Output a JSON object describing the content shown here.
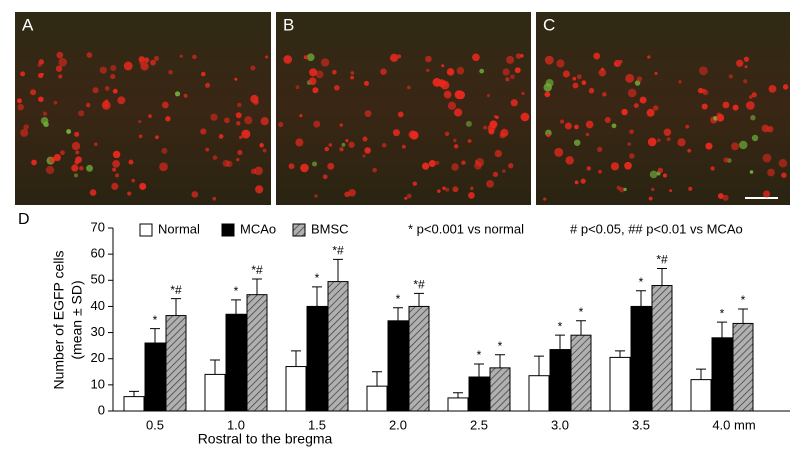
{
  "panels": [
    "A",
    "B",
    "C"
  ],
  "chart_data": {
    "type": "bar",
    "panel": "D",
    "y_label": [
      "Number of EGFP cells",
      "(mean ± SD)"
    ],
    "x_label": "Rostral to the bregma",
    "categories": [
      "0.5",
      "1.0",
      "1.5",
      "2.0",
      "2.5",
      "3.0",
      "3.5",
      "4.0 mm"
    ],
    "series": [
      {
        "name": "Normal",
        "color": "#ffffff",
        "hatch": false,
        "values": [
          5.5,
          14,
          17,
          9.5,
          5,
          13.5,
          20.5,
          12
        ],
        "errors": [
          2,
          5.5,
          6,
          5.5,
          2,
          7.5,
          2.5,
          4
        ]
      },
      {
        "name": "MCAo",
        "color": "#000000",
        "hatch": false,
        "values": [
          26,
          37,
          40,
          34.5,
          13,
          23.5,
          40,
          28
        ],
        "errors": [
          5.5,
          5.5,
          7.5,
          5,
          5,
          5.5,
          6,
          6
        ],
        "markers": [
          "*",
          "*",
          "*",
          "*",
          "*",
          "*",
          "*",
          "*"
        ]
      },
      {
        "name": "BMSC",
        "color": "#9a9a9a",
        "hatch": true,
        "values": [
          36.5,
          44.5,
          49.5,
          40,
          16.5,
          29,
          48,
          33.5
        ],
        "errors": [
          6.5,
          6,
          8.5,
          5,
          5,
          5.5,
          6.5,
          5.5
        ],
        "markers": [
          "*#",
          "*#",
          "*#",
          "*#",
          "*",
          "*",
          "*#",
          "*"
        ]
      }
    ],
    "notes": [
      "* p<0.001 vs normal",
      "# p<0.05, ## p<0.01 vs MCAo"
    ],
    "ylim": [
      0,
      70
    ],
    "yticks": [
      0,
      10,
      20,
      30,
      40,
      50,
      60,
      70
    ],
    "grid": false
  }
}
